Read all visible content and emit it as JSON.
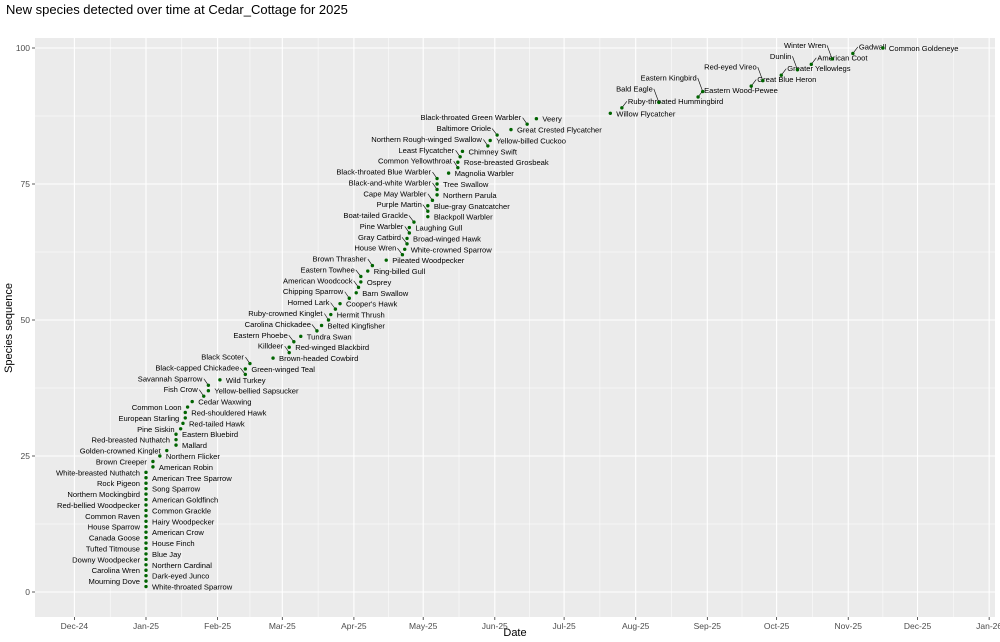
{
  "chart_data": {
    "type": "scatter",
    "title": "New species detected over time at Cedar_Cottage for 2025",
    "xlabel": "Date",
    "ylabel": "Species sequence",
    "x_ticks": [
      "Dec-24",
      "Jan-25",
      "Feb-25",
      "Mar-25",
      "Apr-25",
      "May-25",
      "Jun-25",
      "Jul-25",
      "Aug-25",
      "Sep-25",
      "Oct-25",
      "Nov-25",
      "Dec-25",
      "Jan-26"
    ],
    "x_tick_dates": [
      "2024-12-01",
      "2025-01-01",
      "2025-02-01",
      "2025-03-01",
      "2025-04-01",
      "2025-05-01",
      "2025-06-01",
      "2025-07-01",
      "2025-08-01",
      "2025-09-01",
      "2025-10-01",
      "2025-11-01",
      "2025-12-01",
      "2026-01-01"
    ],
    "y_ticks": [
      0,
      25,
      50,
      75,
      100
    ],
    "ylim": [
      -4,
      104
    ],
    "xlim": [
      "2024-11-16",
      "2026-01-03"
    ],
    "grid": true,
    "point_color": "#006400",
    "panel_color": "#EBEBEB",
    "points": [
      {
        "seq": 1,
        "date": "2025-01-01",
        "species": "White-throated Sparrow"
      },
      {
        "seq": 2,
        "date": "2025-01-01",
        "species": "Mourning Dove"
      },
      {
        "seq": 3,
        "date": "2025-01-01",
        "species": "Dark-eyed Junco"
      },
      {
        "seq": 4,
        "date": "2025-01-01",
        "species": "Carolina Wren"
      },
      {
        "seq": 5,
        "date": "2025-01-01",
        "species": "Northern Cardinal"
      },
      {
        "seq": 6,
        "date": "2025-01-01",
        "species": "Downy Woodpecker"
      },
      {
        "seq": 7,
        "date": "2025-01-01",
        "species": "Blue Jay"
      },
      {
        "seq": 8,
        "date": "2025-01-01",
        "species": "Tufted Titmouse"
      },
      {
        "seq": 9,
        "date": "2025-01-01",
        "species": "House Finch"
      },
      {
        "seq": 10,
        "date": "2025-01-01",
        "species": "Canada Goose"
      },
      {
        "seq": 11,
        "date": "2025-01-01",
        "species": "American Crow"
      },
      {
        "seq": 12,
        "date": "2025-01-01",
        "species": "House Sparrow"
      },
      {
        "seq": 13,
        "date": "2025-01-01",
        "species": "Hairy Woodpecker"
      },
      {
        "seq": 14,
        "date": "2025-01-01",
        "species": "Common Raven"
      },
      {
        "seq": 15,
        "date": "2025-01-01",
        "species": "Common Grackle"
      },
      {
        "seq": 16,
        "date": "2025-01-01",
        "species": "Red-bellied Woodpecker"
      },
      {
        "seq": 17,
        "date": "2025-01-01",
        "species": "American Goldfinch"
      },
      {
        "seq": 18,
        "date": "2025-01-01",
        "species": "Northern Mockingbird"
      },
      {
        "seq": 19,
        "date": "2025-01-01",
        "species": "Song Sparrow"
      },
      {
        "seq": 20,
        "date": "2025-01-01",
        "species": "Rock Pigeon"
      },
      {
        "seq": 21,
        "date": "2025-01-01",
        "species": "American Tree Sparrow"
      },
      {
        "seq": 22,
        "date": "2025-01-01",
        "species": "White-breasted Nuthatch"
      },
      {
        "seq": 23,
        "date": "2025-01-04",
        "species": "American Robin"
      },
      {
        "seq": 24,
        "date": "2025-01-04",
        "species": "Brown Creeper"
      },
      {
        "seq": 25,
        "date": "2025-01-07",
        "species": "Northern Flicker"
      },
      {
        "seq": 26,
        "date": "2025-01-10",
        "species": "Golden-crowned Kinglet"
      },
      {
        "seq": 27,
        "date": "2025-01-14",
        "species": "Mallard"
      },
      {
        "seq": 28,
        "date": "2025-01-14",
        "species": "Red-breasted Nuthatch"
      },
      {
        "seq": 29,
        "date": "2025-01-14",
        "species": "Eastern Bluebird"
      },
      {
        "seq": 30,
        "date": "2025-01-16",
        "species": "Pine Siskin"
      },
      {
        "seq": 31,
        "date": "2025-01-17",
        "species": "Red-tailed Hawk"
      },
      {
        "seq": 32,
        "date": "2025-01-18",
        "species": "European Starling"
      },
      {
        "seq": 33,
        "date": "2025-01-18",
        "species": "Red-shouldered Hawk"
      },
      {
        "seq": 34,
        "date": "2025-01-19",
        "species": "Common Loon"
      },
      {
        "seq": 35,
        "date": "2025-01-21",
        "species": "Cedar Waxwing"
      },
      {
        "seq": 36,
        "date": "2025-01-26",
        "species": "Fish Crow"
      },
      {
        "seq": 37,
        "date": "2025-01-28",
        "species": "Yellow-bellied Sapsucker"
      },
      {
        "seq": 38,
        "date": "2025-01-28",
        "species": "Savannah Sparrow"
      },
      {
        "seq": 39,
        "date": "2025-02-02",
        "species": "Wild Turkey"
      },
      {
        "seq": 40,
        "date": "2025-02-13",
        "species": "Black-capped Chickadee"
      },
      {
        "seq": 41,
        "date": "2025-02-13",
        "species": "Green-winged Teal"
      },
      {
        "seq": 42,
        "date": "2025-02-15",
        "species": "Black Scoter"
      },
      {
        "seq": 43,
        "date": "2025-02-25",
        "species": "Brown-headed Cowbird"
      },
      {
        "seq": 44,
        "date": "2025-03-04",
        "species": "Killdeer"
      },
      {
        "seq": 45,
        "date": "2025-03-04",
        "species": "Red-winged Blackbird"
      },
      {
        "seq": 46,
        "date": "2025-03-06",
        "species": "Eastern Phoebe"
      },
      {
        "seq": 47,
        "date": "2025-03-09",
        "species": "Tundra Swan"
      },
      {
        "seq": 48,
        "date": "2025-03-16",
        "species": "Carolina Chickadee"
      },
      {
        "seq": 49,
        "date": "2025-03-18",
        "species": "Belted Kingfisher"
      },
      {
        "seq": 50,
        "date": "2025-03-21",
        "species": "Ruby-crowned Kinglet"
      },
      {
        "seq": 51,
        "date": "2025-03-22",
        "species": "Hermit Thrush"
      },
      {
        "seq": 52,
        "date": "2025-03-24",
        "species": "Horned Lark"
      },
      {
        "seq": 53,
        "date": "2025-03-26",
        "species": "Cooper's Hawk"
      },
      {
        "seq": 54,
        "date": "2025-03-30",
        "species": "Chipping Sparrow"
      },
      {
        "seq": 55,
        "date": "2025-04-02",
        "species": "Barn Swallow"
      },
      {
        "seq": 56,
        "date": "2025-04-03",
        "species": "American Woodcock"
      },
      {
        "seq": 57,
        "date": "2025-04-04",
        "species": "Osprey"
      },
      {
        "seq": 58,
        "date": "2025-04-04",
        "species": "Eastern Towhee"
      },
      {
        "seq": 59,
        "date": "2025-04-07",
        "species": "Ring-billed Gull"
      },
      {
        "seq": 60,
        "date": "2025-04-09",
        "species": "Brown Thrasher"
      },
      {
        "seq": 61,
        "date": "2025-04-15",
        "species": "Pileated Woodpecker"
      },
      {
        "seq": 62,
        "date": "2025-04-22",
        "species": "House Wren"
      },
      {
        "seq": 63,
        "date": "2025-04-23",
        "species": "White-crowned Sparrow"
      },
      {
        "seq": 64,
        "date": "2025-04-24",
        "species": "Gray Catbird"
      },
      {
        "seq": 65,
        "date": "2025-04-24",
        "species": "Broad-winged Hawk"
      },
      {
        "seq": 66,
        "date": "2025-04-25",
        "species": "Pine Warbler"
      },
      {
        "seq": 67,
        "date": "2025-04-25",
        "species": "Laughing Gull"
      },
      {
        "seq": 68,
        "date": "2025-04-27",
        "species": "Boat-tailed Grackle"
      },
      {
        "seq": 69,
        "date": "2025-05-03",
        "species": "Blackpoll Warbler"
      },
      {
        "seq": 70,
        "date": "2025-05-03",
        "species": "Purple Martin"
      },
      {
        "seq": 71,
        "date": "2025-05-03",
        "species": "Blue-gray Gnatcatcher"
      },
      {
        "seq": 72,
        "date": "2025-05-05",
        "species": "Cape May Warbler"
      },
      {
        "seq": 73,
        "date": "2025-05-07",
        "species": "Northern Parula"
      },
      {
        "seq": 74,
        "date": "2025-05-07",
        "species": "Black-and-white Warbler"
      },
      {
        "seq": 75,
        "date": "2025-05-07",
        "species": "Tree Swallow"
      },
      {
        "seq": 76,
        "date": "2025-05-07",
        "species": "Black-throated Blue Warbler"
      },
      {
        "seq": 77,
        "date": "2025-05-12",
        "species": "Magnolia Warbler"
      },
      {
        "seq": 78,
        "date": "2025-05-16",
        "species": "Common Yellowthroat"
      },
      {
        "seq": 79,
        "date": "2025-05-16",
        "species": "Rose-breasted Grosbeak"
      },
      {
        "seq": 80,
        "date": "2025-05-17",
        "species": "Least Flycatcher"
      },
      {
        "seq": 81,
        "date": "2025-05-18",
        "species": "Chimney Swift"
      },
      {
        "seq": 82,
        "date": "2025-05-29",
        "species": "Northern Rough-winged Swallow"
      },
      {
        "seq": 83,
        "date": "2025-05-30",
        "species": "Yellow-billed Cuckoo"
      },
      {
        "seq": 84,
        "date": "2025-06-02",
        "species": "Baltimore Oriole"
      },
      {
        "seq": 85,
        "date": "2025-06-08",
        "species": "Great Crested Flycatcher"
      },
      {
        "seq": 86,
        "date": "2025-06-15",
        "species": "Black-throated Green Warbler"
      },
      {
        "seq": 87,
        "date": "2025-06-19",
        "species": "Veery"
      },
      {
        "seq": 88,
        "date": "2025-07-21",
        "species": "Willow Flycatcher"
      },
      {
        "seq": 89,
        "date": "2025-07-26",
        "species": "Ruby-throated Hummingbird"
      },
      {
        "seq": 90,
        "date": "2025-08-11",
        "species": "Bald Eagle"
      },
      {
        "seq": 91,
        "date": "2025-08-28",
        "species": "Eastern Wood-Pewee"
      },
      {
        "seq": 92,
        "date": "2025-08-30",
        "species": "Eastern Kingbird"
      },
      {
        "seq": 93,
        "date": "2025-09-20",
        "species": "Great Blue Heron"
      },
      {
        "seq": 94,
        "date": "2025-09-25",
        "species": "Red-eyed Vireo"
      },
      {
        "seq": 95,
        "date": "2025-10-03",
        "species": "Greater Yellowlegs"
      },
      {
        "seq": 96,
        "date": "2025-10-10",
        "species": "Dunlin"
      },
      {
        "seq": 97,
        "date": "2025-10-16",
        "species": "American Coot"
      },
      {
        "seq": 98,
        "date": "2025-10-25",
        "species": "Winter Wren"
      },
      {
        "seq": 99,
        "date": "2025-11-03",
        "species": "Gadwall"
      },
      {
        "seq": 100,
        "date": "2025-11-16",
        "species": "Common Goldeneye"
      }
    ]
  }
}
